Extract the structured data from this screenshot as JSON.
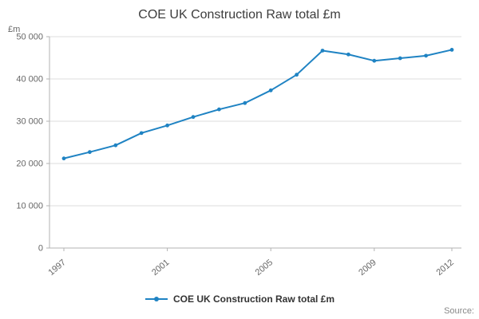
{
  "title": "COE UK Construction Raw total £m",
  "y_unit_label": "£m",
  "source_label": "Source:",
  "legend": {
    "label": "COE UK Construction Raw total £m"
  },
  "colors": {
    "line": "#1f83c3",
    "grid": "#dcdcdc",
    "axis": "#b3b3b3",
    "tick_text": "#666666",
    "title_text": "#3c3c3c"
  },
  "chart_data": {
    "type": "line",
    "title": "COE UK Construction Raw total £m",
    "xlabel": "",
    "ylabel": "£m",
    "x": [
      1997,
      1998,
      1999,
      2000,
      2001,
      2002,
      2003,
      2004,
      2005,
      2006,
      2007,
      2008,
      2009,
      2010,
      2011,
      2012
    ],
    "series": [
      {
        "name": "COE UK Construction Raw total £m",
        "values": [
          21200,
          22700,
          24300,
          27200,
          29000,
          31000,
          32800,
          34300,
          37300,
          41000,
          46700,
          45800,
          44300,
          44900,
          45500,
          46900
        ]
      }
    ],
    "ylim": [
      0,
      50000
    ],
    "yticks": [
      0,
      10000,
      20000,
      30000,
      40000,
      50000
    ],
    "ytick_labels": [
      "0",
      "10 000",
      "20 000",
      "30 000",
      "40 000",
      "50 000"
    ],
    "xtick_years": [
      1997,
      2001,
      2005,
      2009,
      2012
    ],
    "xtick_labels": [
      "1997",
      "2001",
      "2005",
      "2009",
      "2012"
    ],
    "grid": true,
    "legend_position": "bottom"
  }
}
